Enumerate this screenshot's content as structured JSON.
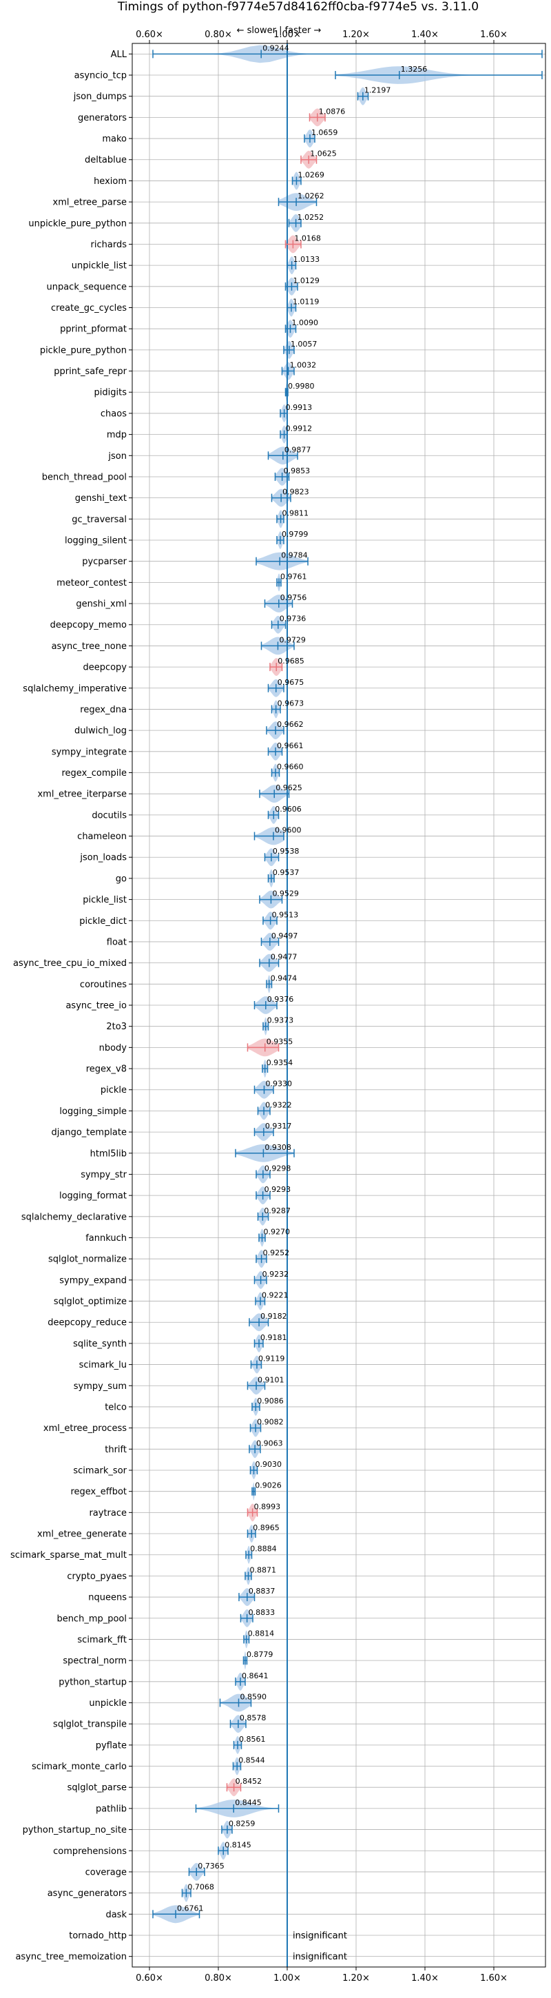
{
  "chart_data": {
    "type": "violin",
    "title": "Timings of python-f9774e57d84162ff0cba-f9774e5 vs. 3.11.0",
    "direction_label": "← slower | faster →",
    "xlim": [
      0.55,
      1.75
    ],
    "x_ticks": [
      0.6,
      0.8,
      1.0,
      1.2,
      1.4,
      1.6
    ],
    "x_tick_labels": [
      "0.60×",
      "0.80×",
      "1.00×",
      "1.20×",
      "1.40×",
      "1.60×"
    ],
    "reference_x": 1.0,
    "grid": true,
    "significant_color": "#1f77b4",
    "insignificant_color": "#e8757b",
    "violin_color": "#a9c8e8",
    "benchmarks": [
      {
        "name": "ALL",
        "value": 0.9244,
        "label": "0.9244",
        "lo": 0.61,
        "hi": 1.74,
        "spread": 0.09
      },
      {
        "name": "asyncio_tcp",
        "value": 1.3256,
        "label": "1.3256",
        "lo": 1.14,
        "hi": 1.74,
        "spread": 0.14
      },
      {
        "name": "json_dumps",
        "value": 1.2197,
        "label": "1.2197",
        "lo": 1.205,
        "hi": 1.235,
        "spread": 0.014
      },
      {
        "name": "generators",
        "value": 1.0876,
        "label": "1.0876",
        "lo": 1.065,
        "hi": 1.11,
        "spread": 0.022,
        "insignificant": true
      },
      {
        "name": "mako",
        "value": 1.0659,
        "label": "1.0659",
        "lo": 1.05,
        "hi": 1.08,
        "spread": 0.015
      },
      {
        "name": "deltablue",
        "value": 1.0625,
        "label": "1.0625",
        "lo": 1.04,
        "hi": 1.085,
        "spread": 0.02,
        "insignificant": true
      },
      {
        "name": "hexiom",
        "value": 1.0269,
        "label": "1.0269",
        "lo": 1.015,
        "hi": 1.04,
        "spread": 0.012
      },
      {
        "name": "xml_etree_parse",
        "value": 1.0262,
        "label": "1.0262",
        "lo": 0.975,
        "hi": 1.085,
        "spread": 0.05
      },
      {
        "name": "unpickle_pure_python",
        "value": 1.0252,
        "label": "1.0252",
        "lo": 1.005,
        "hi": 1.04,
        "spread": 0.018
      },
      {
        "name": "richards",
        "value": 1.0168,
        "label": "1.0168",
        "lo": 0.995,
        "hi": 1.04,
        "spread": 0.02,
        "insignificant": true
      },
      {
        "name": "unpickle_list",
        "value": 1.0133,
        "label": "1.0133",
        "lo": 1.0,
        "hi": 1.025,
        "spread": 0.012
      },
      {
        "name": "unpack_sequence",
        "value": 1.0129,
        "label": "1.0129",
        "lo": 0.995,
        "hi": 1.03,
        "spread": 0.016
      },
      {
        "name": "create_gc_cycles",
        "value": 1.0119,
        "label": "1.0119",
        "lo": 1.0,
        "hi": 1.025,
        "spread": 0.012
      },
      {
        "name": "pprint_pformat",
        "value": 1.009,
        "label": "1.0090",
        "lo": 0.995,
        "hi": 1.025,
        "spread": 0.014
      },
      {
        "name": "pickle_pure_python",
        "value": 1.0057,
        "label": "1.0057",
        "lo": 0.99,
        "hi": 1.02,
        "spread": 0.014
      },
      {
        "name": "pprint_safe_repr",
        "value": 1.0032,
        "label": "1.0032",
        "lo": 0.985,
        "hi": 1.02,
        "spread": 0.016
      },
      {
        "name": "pidigits",
        "value": 0.998,
        "label": "0.9980",
        "lo": 0.995,
        "hi": 1.002,
        "spread": 0.004
      },
      {
        "name": "chaos",
        "value": 0.9913,
        "label": "0.9913",
        "lo": 0.98,
        "hi": 1.0,
        "spread": 0.01
      },
      {
        "name": "mdp",
        "value": 0.9912,
        "label": "0.9912",
        "lo": 0.98,
        "hi": 1.0,
        "spread": 0.01
      },
      {
        "name": "json",
        "value": 0.9877,
        "label": "0.9877",
        "lo": 0.945,
        "hi": 1.03,
        "spread": 0.04
      },
      {
        "name": "bench_thread_pool",
        "value": 0.9853,
        "label": "0.9853",
        "lo": 0.965,
        "hi": 1.005,
        "spread": 0.02
      },
      {
        "name": "genshi_text",
        "value": 0.9823,
        "label": "0.9823",
        "lo": 0.955,
        "hi": 1.01,
        "spread": 0.025
      },
      {
        "name": "gc_traversal",
        "value": 0.9811,
        "label": "0.9811",
        "lo": 0.97,
        "hi": 0.99,
        "spread": 0.01
      },
      {
        "name": "logging_silent",
        "value": 0.9799,
        "label": "0.9799",
        "lo": 0.97,
        "hi": 0.99,
        "spread": 0.009
      },
      {
        "name": "pycparser",
        "value": 0.9784,
        "label": "0.9784",
        "lo": 0.91,
        "hi": 1.06,
        "spread": 0.065
      },
      {
        "name": "meteor_contest",
        "value": 0.9761,
        "label": "0.9761",
        "lo": 0.97,
        "hi": 0.982,
        "spread": 0.006
      },
      {
        "name": "genshi_xml",
        "value": 0.9756,
        "label": "0.9756",
        "lo": 0.935,
        "hi": 1.015,
        "spread": 0.035
      },
      {
        "name": "deepcopy_memo",
        "value": 0.9736,
        "label": "0.9736",
        "lo": 0.955,
        "hi": 0.995,
        "spread": 0.018
      },
      {
        "name": "async_tree_none",
        "value": 0.9729,
        "label": "0.9729",
        "lo": 0.925,
        "hi": 1.02,
        "spread": 0.04
      },
      {
        "name": "deepcopy",
        "value": 0.9685,
        "label": "0.9685",
        "lo": 0.95,
        "hi": 0.985,
        "spread": 0.018,
        "insignificant": true
      },
      {
        "name": "sqlalchemy_imperative",
        "value": 0.9675,
        "label": "0.9675",
        "lo": 0.945,
        "hi": 0.99,
        "spread": 0.02
      },
      {
        "name": "regex_dna",
        "value": 0.9673,
        "label": "0.9673",
        "lo": 0.955,
        "hi": 0.98,
        "spread": 0.01
      },
      {
        "name": "dulwich_log",
        "value": 0.9662,
        "label": "0.9662",
        "lo": 0.94,
        "hi": 0.99,
        "spread": 0.022
      },
      {
        "name": "sympy_integrate",
        "value": 0.9661,
        "label": "0.9661",
        "lo": 0.945,
        "hi": 0.985,
        "spread": 0.018
      },
      {
        "name": "regex_compile",
        "value": 0.966,
        "label": "0.9660",
        "lo": 0.955,
        "hi": 0.977,
        "spread": 0.01
      },
      {
        "name": "xml_etree_iterparse",
        "value": 0.9625,
        "label": "0.9625",
        "lo": 0.92,
        "hi": 1.005,
        "spread": 0.035
      },
      {
        "name": "docutils",
        "value": 0.9606,
        "label": "0.9606",
        "lo": 0.945,
        "hi": 0.975,
        "spread": 0.014
      },
      {
        "name": "chameleon",
        "value": 0.96,
        "label": "0.9600",
        "lo": 0.905,
        "hi": 0.99,
        "spread": 0.045
      },
      {
        "name": "json_loads",
        "value": 0.9538,
        "label": "0.9538",
        "lo": 0.935,
        "hi": 0.975,
        "spread": 0.018
      },
      {
        "name": "go",
        "value": 0.9537,
        "label": "0.9537",
        "lo": 0.945,
        "hi": 0.962,
        "spread": 0.008
      },
      {
        "name": "pickle_list",
        "value": 0.9529,
        "label": "0.9529",
        "lo": 0.92,
        "hi": 0.985,
        "spread": 0.028
      },
      {
        "name": "pickle_dict",
        "value": 0.9513,
        "label": "0.9513",
        "lo": 0.93,
        "hi": 0.97,
        "spread": 0.018
      },
      {
        "name": "float",
        "value": 0.9497,
        "label": "0.9497",
        "lo": 0.925,
        "hi": 0.975,
        "spread": 0.022
      },
      {
        "name": "async_tree_cpu_io_mixed",
        "value": 0.9477,
        "label": "0.9477",
        "lo": 0.92,
        "hi": 0.975,
        "spread": 0.025
      },
      {
        "name": "coroutines",
        "value": 0.9474,
        "label": "0.9474",
        "lo": 0.94,
        "hi": 0.955,
        "spread": 0.006
      },
      {
        "name": "async_tree_io",
        "value": 0.9376,
        "label": "0.9376",
        "lo": 0.905,
        "hi": 0.97,
        "spread": 0.03
      },
      {
        "name": "2to3",
        "value": 0.9373,
        "label": "0.9373",
        "lo": 0.93,
        "hi": 0.945,
        "spread": 0.006
      },
      {
        "name": "nbody",
        "value": 0.9355,
        "label": "0.9355",
        "lo": 0.885,
        "hi": 0.975,
        "spread": 0.045,
        "insignificant": true
      },
      {
        "name": "regex_v8",
        "value": 0.9354,
        "label": "0.9354",
        "lo": 0.928,
        "hi": 0.943,
        "spread": 0.006
      },
      {
        "name": "pickle",
        "value": 0.933,
        "label": "0.9330",
        "lo": 0.905,
        "hi": 0.96,
        "spread": 0.025
      },
      {
        "name": "logging_simple",
        "value": 0.9322,
        "label": "0.9322",
        "lo": 0.915,
        "hi": 0.95,
        "spread": 0.016
      },
      {
        "name": "django_template",
        "value": 0.9317,
        "label": "0.9317",
        "lo": 0.905,
        "hi": 0.96,
        "spread": 0.025
      },
      {
        "name": "html5lib",
        "value": 0.9308,
        "label": "0.9308",
        "lo": 0.85,
        "hi": 1.02,
        "spread": 0.07
      },
      {
        "name": "sympy_str",
        "value": 0.9298,
        "label": "0.9298",
        "lo": 0.91,
        "hi": 0.95,
        "spread": 0.018
      },
      {
        "name": "logging_format",
        "value": 0.9293,
        "label": "0.9293",
        "lo": 0.91,
        "hi": 0.95,
        "spread": 0.018
      },
      {
        "name": "sqlalchemy_declarative",
        "value": 0.9287,
        "label": "0.9287",
        "lo": 0.915,
        "hi": 0.945,
        "spread": 0.014
      },
      {
        "name": "fannkuch",
        "value": 0.927,
        "label": "0.9270",
        "lo": 0.918,
        "hi": 0.936,
        "spread": 0.008
      },
      {
        "name": "sqlglot_normalize",
        "value": 0.9252,
        "label": "0.9252",
        "lo": 0.91,
        "hi": 0.94,
        "spread": 0.014
      },
      {
        "name": "sympy_expand",
        "value": 0.9232,
        "label": "0.9232",
        "lo": 0.905,
        "hi": 0.94,
        "spread": 0.016
      },
      {
        "name": "sqlglot_optimize",
        "value": 0.9221,
        "label": "0.9221",
        "lo": 0.908,
        "hi": 0.935,
        "spread": 0.012
      },
      {
        "name": "deepcopy_reduce",
        "value": 0.9182,
        "label": "0.9182",
        "lo": 0.89,
        "hi": 0.945,
        "spread": 0.025
      },
      {
        "name": "sqlite_synth",
        "value": 0.9181,
        "label": "0.9181",
        "lo": 0.905,
        "hi": 0.93,
        "spread": 0.012
      },
      {
        "name": "scimark_lu",
        "value": 0.9119,
        "label": "0.9119",
        "lo": 0.895,
        "hi": 0.925,
        "spread": 0.014
      },
      {
        "name": "sympy_sum",
        "value": 0.9101,
        "label": "0.9101",
        "lo": 0.885,
        "hi": 0.935,
        "spread": 0.022
      },
      {
        "name": "telco",
        "value": 0.9086,
        "label": "0.9086",
        "lo": 0.898,
        "hi": 0.92,
        "spread": 0.01
      },
      {
        "name": "xml_etree_process",
        "value": 0.9082,
        "label": "0.9082",
        "lo": 0.893,
        "hi": 0.923,
        "spread": 0.014
      },
      {
        "name": "thrift",
        "value": 0.9063,
        "label": "0.9063",
        "lo": 0.89,
        "hi": 0.922,
        "spread": 0.014
      },
      {
        "name": "scimark_sor",
        "value": 0.903,
        "label": "0.9030",
        "lo": 0.893,
        "hi": 0.913,
        "spread": 0.009
      },
      {
        "name": "regex_effbot",
        "value": 0.9026,
        "label": "0.9026",
        "lo": 0.898,
        "hi": 0.907,
        "spread": 0.004
      },
      {
        "name": "raytrace",
        "value": 0.8993,
        "label": "0.8993",
        "lo": 0.885,
        "hi": 0.913,
        "spread": 0.013,
        "insignificant": true
      },
      {
        "name": "xml_etree_generate",
        "value": 0.8965,
        "label": "0.8965",
        "lo": 0.885,
        "hi": 0.908,
        "spread": 0.01
      },
      {
        "name": "scimark_sparse_mat_mult",
        "value": 0.8884,
        "label": "0.8884",
        "lo": 0.88,
        "hi": 0.897,
        "spread": 0.007
      },
      {
        "name": "crypto_pyaes",
        "value": 0.8871,
        "label": "0.8871",
        "lo": 0.878,
        "hi": 0.896,
        "spread": 0.008
      },
      {
        "name": "nqueens",
        "value": 0.8837,
        "label": "0.8837",
        "lo": 0.86,
        "hi": 0.905,
        "spread": 0.02
      },
      {
        "name": "bench_mp_pool",
        "value": 0.8833,
        "label": "0.8833",
        "lo": 0.865,
        "hi": 0.9,
        "spread": 0.016
      },
      {
        "name": "scimark_fft",
        "value": 0.8814,
        "label": "0.8814",
        "lo": 0.874,
        "hi": 0.889,
        "spread": 0.006
      },
      {
        "name": "spectral_norm",
        "value": 0.8779,
        "label": "0.8779",
        "lo": 0.873,
        "hi": 0.883,
        "spread": 0.004
      },
      {
        "name": "python_startup",
        "value": 0.8641,
        "label": "0.8641",
        "lo": 0.85,
        "hi": 0.878,
        "spread": 0.013
      },
      {
        "name": "unpickle",
        "value": 0.859,
        "label": "0.8590",
        "lo": 0.805,
        "hi": 0.895,
        "spread": 0.04
      },
      {
        "name": "sqlglot_transpile",
        "value": 0.8578,
        "label": "0.8578",
        "lo": 0.835,
        "hi": 0.88,
        "spread": 0.02
      },
      {
        "name": "pyflate",
        "value": 0.8561,
        "label": "0.8561",
        "lo": 0.845,
        "hi": 0.867,
        "spread": 0.01
      },
      {
        "name": "scimark_monte_carlo",
        "value": 0.8544,
        "label": "0.8544",
        "lo": 0.843,
        "hi": 0.865,
        "spread": 0.01
      },
      {
        "name": "sqlglot_parse",
        "value": 0.8452,
        "label": "0.8452",
        "lo": 0.825,
        "hi": 0.865,
        "spread": 0.018,
        "insignificant": true
      },
      {
        "name": "pathlib",
        "value": 0.8445,
        "label": "0.8445",
        "lo": 0.735,
        "hi": 0.975,
        "spread": 0.08
      },
      {
        "name": "python_startup_no_site",
        "value": 0.8259,
        "label": "0.8259",
        "lo": 0.81,
        "hi": 0.84,
        "spread": 0.014
      },
      {
        "name": "comprehensions",
        "value": 0.8145,
        "label": "0.8145",
        "lo": 0.8,
        "hi": 0.828,
        "spread": 0.012
      },
      {
        "name": "coverage",
        "value": 0.7365,
        "label": "0.7365",
        "lo": 0.715,
        "hi": 0.76,
        "spread": 0.02
      },
      {
        "name": "async_generators",
        "value": 0.7068,
        "label": "0.7068",
        "lo": 0.695,
        "hi": 0.72,
        "spread": 0.01
      },
      {
        "name": "dask",
        "value": 0.6761,
        "label": "0.6761",
        "lo": 0.61,
        "hi": 0.745,
        "spread": 0.055
      },
      {
        "name": "tornado_http",
        "value": null,
        "label": "insignificant"
      },
      {
        "name": "async_tree_memoization",
        "value": null,
        "label": "insignificant"
      }
    ]
  }
}
